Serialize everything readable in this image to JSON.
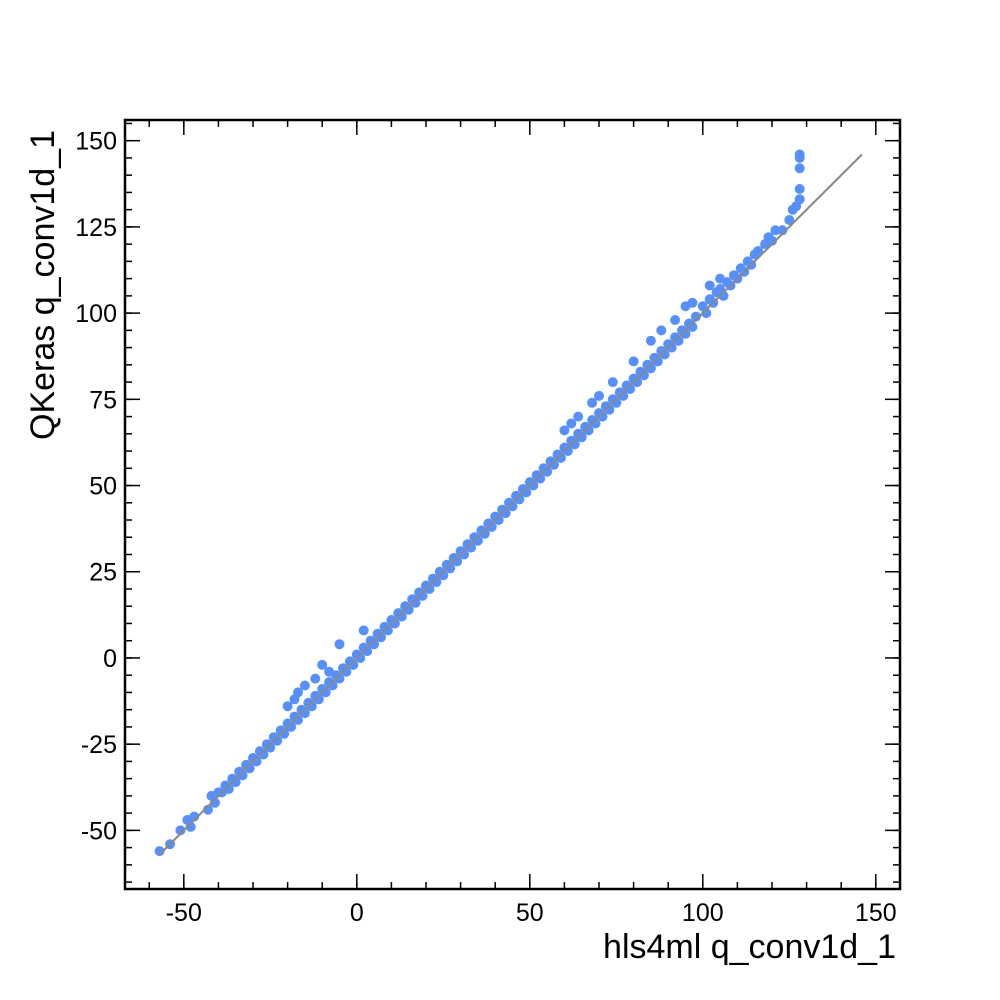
{
  "chart_data": {
    "type": "scatter",
    "title": "",
    "xlabel": "hls4ml q_conv1d_1",
    "ylabel": "QKeras q_conv1d_1",
    "xlim": [
      -67,
      157
    ],
    "ylim": [
      -67,
      156
    ],
    "x_ticks": [
      -50,
      0,
      50,
      100,
      150
    ],
    "y_ticks": [
      -50,
      -25,
      0,
      25,
      50,
      75,
      100,
      125,
      150
    ],
    "x_minor_step": 10,
    "y_minor_step": 5,
    "grid": false,
    "legend": "none",
    "colors": {
      "points": "#5790fc",
      "reference_line": "#888888"
    },
    "reference_line": {
      "name": "",
      "x": [
        -57,
        146
      ],
      "y": [
        -57,
        146
      ]
    },
    "series": [
      {
        "name": "",
        "x": [
          -57,
          -54,
          -51,
          -49,
          -48,
          -47,
          -43,
          -42,
          -41,
          -40,
          -39,
          -38,
          -37,
          -36,
          -35,
          -34,
          -33,
          -32,
          -31,
          -30,
          -29,
          -28,
          -27,
          -26,
          -25,
          -24,
          -23,
          -22,
          -21,
          -20,
          -19,
          -18,
          -17,
          -16,
          -15,
          -14,
          -13,
          -12,
          -11,
          -10,
          -9,
          -8,
          -7,
          -6,
          -5,
          -4,
          -3,
          -2,
          -1,
          0,
          1,
          2,
          3,
          4,
          5,
          6,
          7,
          8,
          9,
          10,
          11,
          12,
          13,
          14,
          15,
          16,
          17,
          18,
          19,
          20,
          21,
          22,
          23,
          24,
          25,
          26,
          27,
          28,
          29,
          30,
          31,
          32,
          33,
          34,
          35,
          36,
          37,
          38,
          39,
          40,
          41,
          42,
          43,
          44,
          45,
          46,
          47,
          48,
          49,
          50,
          51,
          52,
          53,
          54,
          55,
          56,
          57,
          58,
          59,
          60,
          61,
          62,
          63,
          64,
          65,
          66,
          67,
          68,
          69,
          70,
          71,
          72,
          73,
          74,
          75,
          76,
          77,
          78,
          79,
          80,
          81,
          82,
          83,
          84,
          85,
          86,
          87,
          88,
          89,
          90,
          91,
          92,
          93,
          94,
          95,
          96,
          97,
          98,
          100,
          101,
          102,
          103,
          104,
          105,
          106,
          107,
          108,
          109,
          110,
          111,
          112,
          113,
          114,
          115,
          116,
          118,
          119,
          120,
          121,
          123,
          125,
          126,
          127,
          128,
          128,
          128,
          128,
          128,
          -17,
          -18,
          -15,
          -10,
          -8,
          -20,
          -12,
          -5,
          2,
          60,
          62,
          64,
          68,
          70,
          74,
          80,
          85,
          88,
          92,
          95,
          97,
          102,
          105
        ],
        "y": [
          -56,
          -54,
          -50,
          -47,
          -49,
          -46,
          -44,
          -40,
          -42,
          -39,
          -39,
          -37,
          -38,
          -35,
          -36,
          -33,
          -34,
          -31,
          -32,
          -29,
          -30,
          -27,
          -28,
          -25,
          -26,
          -23,
          -24,
          -21,
          -22,
          -19,
          -20,
          -17,
          -18,
          -15,
          -16,
          -13,
          -14,
          -11,
          -12,
          -9,
          -10,
          -7,
          -8,
          -5,
          -6,
          -3,
          -4,
          -1,
          -2,
          1,
          0,
          3,
          2,
          5,
          4,
          7,
          6,
          9,
          8,
          11,
          10,
          13,
          12,
          15,
          14,
          17,
          16,
          19,
          18,
          21,
          20,
          23,
          22,
          25,
          24,
          27,
          26,
          29,
          28,
          31,
          30,
          33,
          32,
          35,
          34,
          37,
          36,
          39,
          38,
          41,
          40,
          43,
          42,
          45,
          44,
          47,
          46,
          49,
          48,
          51,
          50,
          53,
          52,
          55,
          54,
          57,
          56,
          59,
          58,
          61,
          60,
          63,
          62,
          65,
          64,
          67,
          66,
          69,
          68,
          71,
          70,
          73,
          72,
          75,
          74,
          77,
          76,
          79,
          78,
          81,
          80,
          83,
          82,
          85,
          84,
          87,
          86,
          89,
          88,
          91,
          90,
          93,
          92,
          95,
          94,
          97,
          96,
          99,
          102,
          100,
          104,
          103,
          106,
          107,
          105,
          109,
          108,
          111,
          110,
          113,
          112,
          115,
          114,
          117,
          118,
          120,
          122,
          121,
          124,
          124,
          127,
          130,
          131,
          133,
          136,
          142,
          145,
          146,
          -10,
          -12,
          -8,
          -2,
          -4,
          -14,
          -6,
          4,
          8,
          66,
          68,
          70,
          74,
          76,
          80,
          86,
          92,
          95,
          98,
          102,
          103,
          108,
          110
        ]
      }
    ]
  }
}
